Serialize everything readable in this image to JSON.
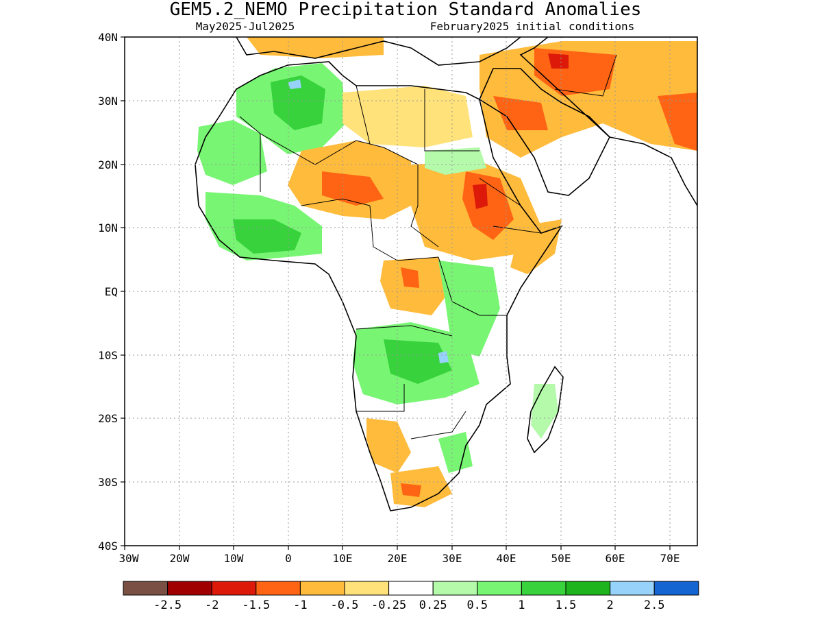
{
  "title": "GEM5.2_NEMO Precipitation Standard Anomalies",
  "subtitle_left": "May2025-Jul2025",
  "subtitle_right": "February2025 initial conditions",
  "map": {
    "lon_range": [
      -30,
      75
    ],
    "lat_range": [
      -40,
      40
    ],
    "lat_labels": [
      "40N",
      "30N",
      "20N",
      "10N",
      "EQ",
      "10S",
      "20S",
      "30S",
      "40S"
    ],
    "lon_labels": [
      "30W",
      "20W",
      "10W",
      "0",
      "10E",
      "20E",
      "30E",
      "40E",
      "50E",
      "60E",
      "70E"
    ],
    "grid": "dotted"
  },
  "colorbar": {
    "colors": [
      "#7a5044",
      "#a00000",
      "#dd1a0a",
      "#ff6414",
      "#ffbb3c",
      "#ffe27a",
      "#ffffff",
      "#b4faaa",
      "#78f573",
      "#37d23c",
      "#1eb41e",
      "#96d2fa",
      "#1464d2"
    ],
    "labels": [
      "-2.5",
      "-2",
      "-1.5",
      "-1",
      "-0.5",
      "-0.25",
      "0.25",
      "0.5",
      "1",
      "1.5",
      "2",
      "2.5"
    ]
  }
}
